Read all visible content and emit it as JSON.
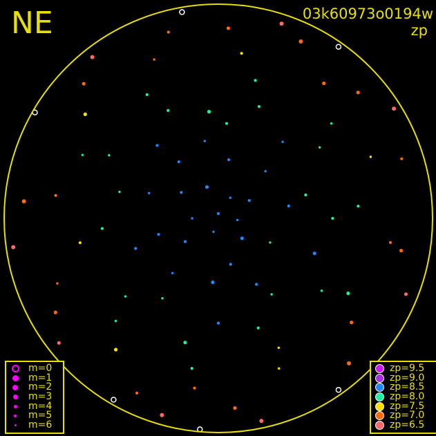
{
  "header": {
    "direction": "NE",
    "frame_id": "03k60973o0194w",
    "quantity": "zp"
  },
  "chart_data": {
    "type": "scatter",
    "projection": "polar all-sky (azimuth, altitude)",
    "horizon_circle_color": "#e8e000",
    "background": "#000000",
    "size_legend": {
      "items": [
        {
          "label": "m=0",
          "style": "open-circle"
        },
        {
          "label": "m=1",
          "style": "dot"
        },
        {
          "label": "m=2",
          "style": "dot"
        },
        {
          "label": "m=3",
          "style": "dot"
        },
        {
          "label": "m=4",
          "style": "dot"
        },
        {
          "label": "m=5",
          "style": "dot"
        },
        {
          "label": "m=6",
          "style": "dot"
        }
      ],
      "color": "#ff00ff"
    },
    "color_legend": {
      "items": [
        {
          "label": "zp=9.5",
          "zp": 9.5,
          "color": "#c81cf0"
        },
        {
          "label": "zp=9.0",
          "zp": 9.0,
          "color": "#a830e0"
        },
        {
          "label": "zp=8.5",
          "zp": 8.5,
          "color": "#2088ff"
        },
        {
          "label": "zp=8.0",
          "zp": 8.0,
          "color": "#20f0a0"
        },
        {
          "label": "zp=7.5",
          "zp": 7.5,
          "color": "#ffe000"
        },
        {
          "label": "zp=7.0",
          "zp": 7.0,
          "color": "#ff6a10"
        },
        {
          "label": "zp=6.5",
          "zp": 6.5,
          "color": "#ff6868"
        }
      ]
    },
    "points_columns": [
      "az_deg",
      "alt_deg",
      "zp",
      "m"
    ],
    "points": [
      [
        0,
        88,
        8.4,
        4
      ],
      [
        30,
        80,
        8.5,
        5
      ],
      [
        60,
        75,
        8.3,
        4
      ],
      [
        95,
        82,
        8.6,
        5
      ],
      [
        130,
        77,
        8.4,
        3
      ],
      [
        165,
        70,
        8.5,
        4
      ],
      [
        200,
        84,
        8.3,
        5
      ],
      [
        235,
        73,
        8.6,
        4
      ],
      [
        270,
        79,
        8.4,
        5
      ],
      [
        305,
        71,
        8.5,
        4
      ],
      [
        340,
        76,
        8.3,
        3
      ],
      [
        10,
        65,
        8.4,
        4
      ],
      [
        45,
        62,
        8.3,
        5
      ],
      [
        80,
        60,
        8.5,
        4
      ],
      [
        115,
        66,
        8.2,
        5
      ],
      [
        150,
        58,
        8.4,
        4
      ],
      [
        185,
        63,
        8.5,
        3
      ],
      [
        220,
        60,
        8.3,
        5
      ],
      [
        255,
        64,
        8.4,
        4
      ],
      [
        290,
        59,
        8.6,
        5
      ],
      [
        325,
        61,
        8.3,
        4
      ],
      [
        350,
        57,
        8.4,
        5
      ],
      [
        5,
        50,
        8.2,
        4
      ],
      [
        40,
        48,
        8.3,
        5
      ],
      [
        75,
        52,
        8.1,
        4
      ],
      [
        110,
        47,
        8.3,
        3
      ],
      [
        145,
        51,
        8.2,
        5
      ],
      [
        180,
        46,
        8.4,
        4
      ],
      [
        215,
        49,
        8.2,
        5
      ],
      [
        250,
        53,
        8.3,
        4
      ],
      [
        285,
        47,
        8.1,
        5
      ],
      [
        320,
        50,
        8.3,
        4
      ],
      [
        355,
        45,
        8.2,
        3
      ],
      [
        20,
        40,
        8.0,
        4
      ],
      [
        55,
        38,
        8.1,
        5
      ],
      [
        90,
        42,
        8.0,
        4
      ],
      [
        125,
        37,
        7.9,
        5
      ],
      [
        160,
        41,
        8.0,
        4
      ],
      [
        195,
        36,
        8.1,
        3
      ],
      [
        230,
        39,
        7.9,
        5
      ],
      [
        265,
        41,
        8.0,
        4
      ],
      [
        300,
        37,
        8.1,
        5
      ],
      [
        335,
        40,
        7.9,
        4
      ],
      [
        15,
        30,
        7.8,
        4
      ],
      [
        50,
        28,
        7.9,
        5
      ],
      [
        85,
        31,
        7.8,
        4
      ],
      [
        120,
        27,
        7.9,
        3
      ],
      [
        155,
        30,
        7.7,
        5
      ],
      [
        190,
        26,
        7.8,
        4
      ],
      [
        225,
        29,
        7.9,
        5
      ],
      [
        260,
        31,
        7.7,
        4
      ],
      [
        295,
        27,
        7.8,
        5
      ],
      [
        330,
        30,
        7.9,
        4
      ],
      [
        8,
        20,
        7.3,
        4
      ],
      [
        38,
        18,
        7.1,
        3
      ],
      [
        68,
        21,
        7.4,
        5
      ],
      [
        98,
        17,
        7.2,
        4
      ],
      [
        128,
        19,
        7.0,
        3
      ],
      [
        158,
        22,
        7.3,
        5
      ],
      [
        188,
        18,
        7.1,
        4
      ],
      [
        218,
        20,
        7.4,
        3
      ],
      [
        248,
        17,
        7.0,
        5
      ],
      [
        278,
        21,
        7.2,
        4
      ],
      [
        308,
        19,
        7.3,
        3
      ],
      [
        338,
        18,
        7.1,
        5
      ],
      [
        3,
        10,
        6.9,
        3
      ],
      [
        25,
        8,
        7.0,
        2
      ],
      [
        48,
        11,
        6.8,
        3
      ],
      [
        72,
        9,
        6.9,
        4
      ],
      [
        100,
        12,
        7.0,
        3
      ],
      [
        138,
        8,
        6.8,
        2
      ],
      [
        175,
        10,
        6.9,
        3
      ],
      [
        205,
        9,
        7.0,
        4
      ],
      [
        240,
        11,
        6.8,
        3
      ],
      [
        275,
        8,
        6.9,
        2
      ],
      [
        315,
        10,
        7.0,
        3
      ],
      [
        345,
        9,
        6.8,
        4
      ],
      [
        18,
        4,
        6.5,
        2
      ],
      [
        58,
        3,
        6.6,
        2
      ],
      [
        112,
        5,
        6.5,
        3
      ],
      [
        168,
        3,
        6.6,
        2
      ],
      [
        196,
        4,
        6.5,
        2
      ],
      [
        232,
        5,
        6.6,
        3
      ],
      [
        262,
        3,
        6.5,
        2
      ],
      [
        322,
        4,
        6.6,
        2
      ],
      [
        35,
        2,
        null,
        0
      ],
      [
        145,
        2,
        null,
        1
      ],
      [
        185,
        1,
        null,
        0
      ],
      [
        210,
        2,
        null,
        1
      ],
      [
        300,
        1,
        null,
        0
      ],
      [
        350,
        2,
        null,
        1
      ]
    ]
  }
}
